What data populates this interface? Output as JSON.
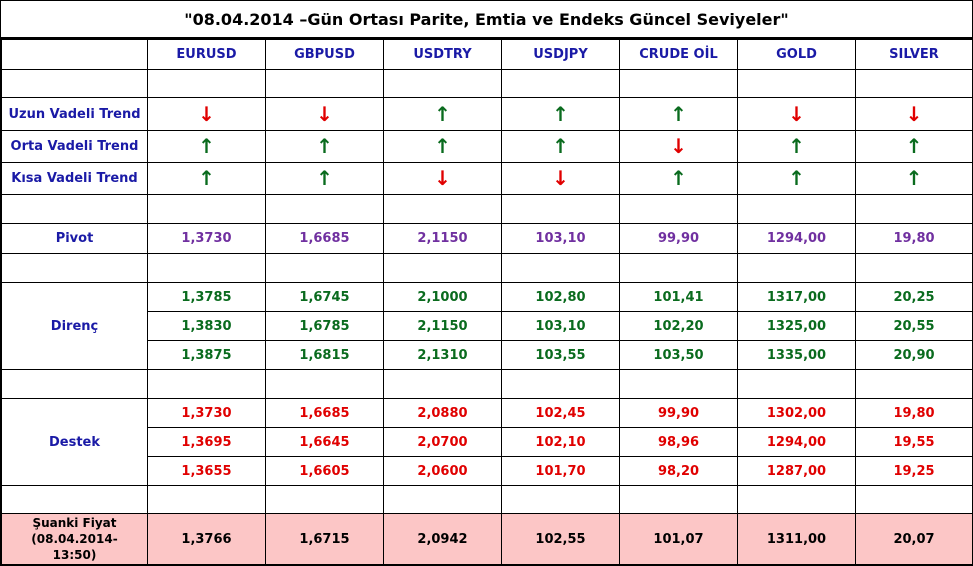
{
  "title": "\"08.04.2014 –Gün Ortası Parite, Emtia ve Endeks Güncel Seviyeler\"",
  "columns": [
    "EURUSD",
    "GBPUSD",
    "USDTRY",
    "USDJPY",
    "CRUDE OİL",
    "GOLD",
    "SILVER"
  ],
  "trends": [
    {
      "label": "Uzun Vadeli Trend",
      "dirs": [
        "down",
        "down",
        "up",
        "up",
        "up",
        "down",
        "down"
      ]
    },
    {
      "label": "Orta Vadeli Trend",
      "dirs": [
        "up",
        "up",
        "up",
        "up",
        "down",
        "up",
        "up"
      ]
    },
    {
      "label": "Kısa Vadeli Trend",
      "dirs": [
        "up",
        "up",
        "down",
        "down",
        "up",
        "up",
        "up"
      ]
    }
  ],
  "arrow_glyphs": {
    "up": "🡡",
    "down": "🡣"
  },
  "pivot": {
    "label": "Pivot",
    "values": [
      "1,3730",
      "1,6685",
      "2,1150",
      "103,10",
      "99,90",
      "1294,00",
      "19,80"
    ]
  },
  "resistance": {
    "label": "Direnç",
    "rows": [
      [
        "1,3785",
        "1,6745",
        "2,1000",
        "102,80",
        "101,41",
        "1317,00",
        "20,25"
      ],
      [
        "1,3830",
        "1,6785",
        "2,1150",
        "103,10",
        "102,20",
        "1325,00",
        "20,55"
      ],
      [
        "1,3875",
        "1,6815",
        "2,1310",
        "103,55",
        "103,50",
        "1335,00",
        "20,90"
      ]
    ]
  },
  "support": {
    "label": "Destek",
    "rows": [
      [
        "1,3730",
        "1,6685",
        "2,0880",
        "102,45",
        "99,90",
        "1302,00",
        "19,80"
      ],
      [
        "1,3695",
        "1,6645",
        "2,0700",
        "102,10",
        "98,96",
        "1294,00",
        "19,55"
      ],
      [
        "1,3655",
        "1,6605",
        "2,0600",
        "101,70",
        "98,20",
        "1287,00",
        "19,25"
      ]
    ]
  },
  "current": {
    "label_line1": "Şuanki Fiyat",
    "label_line2": "(08.04.2014-",
    "label_line3": "13:50)",
    "values": [
      "1,3766",
      "1,6715",
      "2,0942",
      "102,55",
      "101,07",
      "1311,00",
      "20,07"
    ]
  },
  "colors": {
    "label": "#1a1aa6",
    "pivot": "#7030a0",
    "resistance": "#0a6b1e",
    "support": "#e00000",
    "current_bg": "#fcc6c6"
  }
}
